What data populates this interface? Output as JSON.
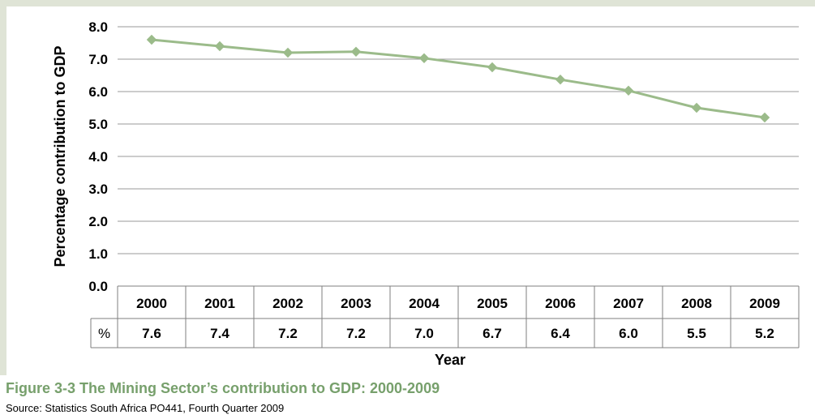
{
  "chart_data": {
    "type": "line",
    "categories": [
      "2000",
      "2001",
      "2002",
      "2003",
      "2004",
      "2005",
      "2006",
      "2007",
      "2008",
      "2009"
    ],
    "plotted_values": [
      7.6,
      7.4,
      7.2,
      7.23,
      7.03,
      6.75,
      6.37,
      6.03,
      5.5,
      5.2
    ],
    "table_row_label": "%",
    "table_values": [
      "7.6",
      "7.4",
      "7.2",
      "7.2",
      "7.0",
      "6.7",
      "6.4",
      "6.0",
      "5.5",
      "5.2"
    ],
    "yticks": [
      "0.0",
      "1.0",
      "2.0",
      "3.0",
      "4.0",
      "5.0",
      "6.0",
      "7.0",
      "8.0"
    ],
    "ylim": [
      0,
      8
    ],
    "ylabel": "Percentage contribution to GDP",
    "xlabel": "Year",
    "grid": true,
    "legend": "none",
    "series_color": "#9bbb8a",
    "grid_color": "#9a9a9a",
    "table_border_color": "#7f7f7f"
  },
  "figure": {
    "caption": "Figure 3-3  The Mining Sector’s contribution to GDP: 2000-2009",
    "source": "Source: Statistics South Africa PO441, Fourth Quarter 2009"
  }
}
